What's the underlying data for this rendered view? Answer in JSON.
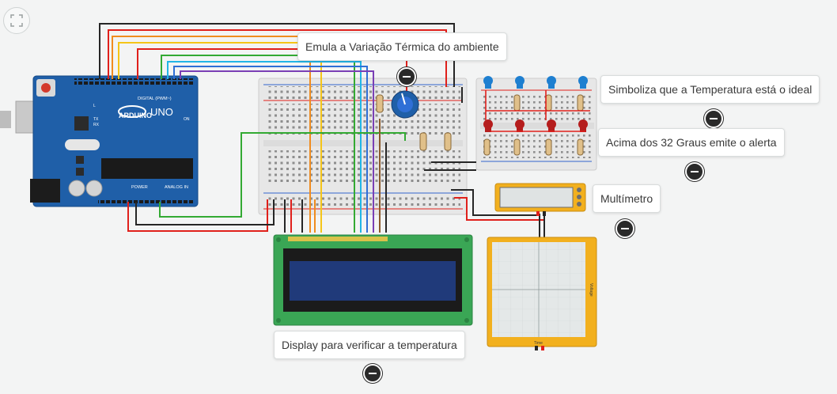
{
  "annotations": {
    "thermal": "Emula a Variação Térmica do ambiente",
    "ideal": "Simboliza que a Temperatura está o ideal",
    "alert": "Acima dos 32 Graus emite o alerta",
    "multimeter": "Multímetro",
    "display": "Display para verificar a temperatura"
  },
  "arduino": {
    "brand": "ARDUINO",
    "model": "UNO",
    "digital_label": "DIGITAL (PWM~)",
    "power_label": "POWER",
    "analog_label": "ANALOG IN",
    "on_label": "ON",
    "tx_label": "TX",
    "rx_label": "RX",
    "l_label": "L"
  },
  "oscilloscope": {
    "x_label": "Time",
    "y_label": "Voltage"
  },
  "icons": {
    "fit": "fit-to-view-icon",
    "collapse": "collapse-note-icon"
  },
  "colors": {
    "board": "#1f5fa8",
    "breadboard": "#e7e7e7",
    "pcb_green": "#3aa655",
    "lcd_screen": "#203a7a",
    "instrument": "#f2b01e",
    "wire_orange": "#f08c1f",
    "wire_yellow": "#f5c518",
    "wire_red": "#e0201b",
    "wire_green": "#33aa33",
    "wire_cyan": "#22b5e6",
    "wire_blue": "#2f6fd6",
    "wire_purple": "#7a3fb5",
    "wire_black": "#262626",
    "wire_brown": "#8b5a2b"
  }
}
